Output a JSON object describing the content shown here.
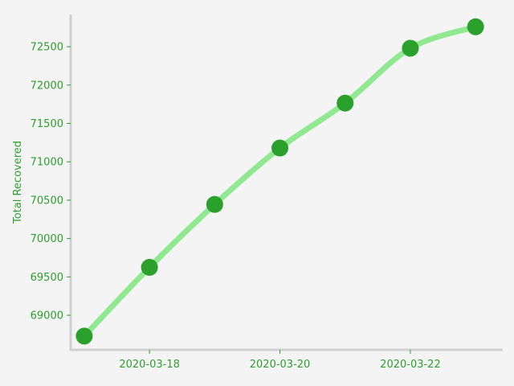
{
  "chart_data": {
    "type": "line",
    "x": [
      "2020-03-17",
      "2020-03-18",
      "2020-03-19",
      "2020-03-20",
      "2020-03-21",
      "2020-03-22",
      "2020-03-23"
    ],
    "series": [
      {
        "values": [
          68729,
          69625,
          70445,
          71180,
          71765,
          72480,
          72760
        ]
      }
    ],
    "xticks": [
      "2020-03-18",
      "2020-03-20",
      "2020-03-22"
    ],
    "yticks": [
      69000,
      69500,
      70000,
      70500,
      71000,
      71500,
      72000,
      72500
    ],
    "ylabel": "Total Recovered",
    "xlim": [
      "2020-03-16 19:00",
      "2020-03-23 10:00"
    ],
    "ylim": [
      68550,
      72920
    ],
    "grid": false,
    "line_style": "smooth",
    "colors": {
      "line": "#90e890",
      "marker": "#2ca02c",
      "text": "#2ca02c",
      "spine": "#d0d0d0",
      "background": "#f4f4f4"
    }
  }
}
